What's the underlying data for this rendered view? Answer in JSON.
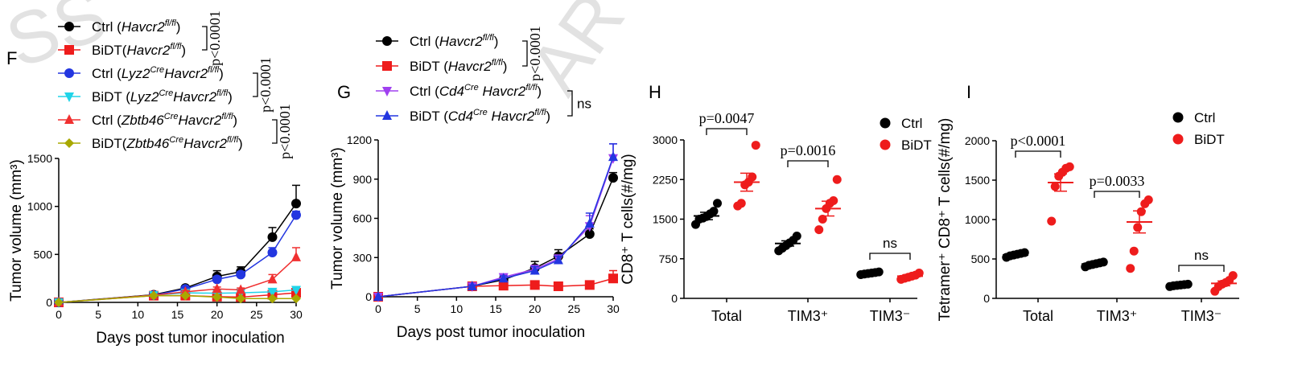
{
  "watermarks": [
    "SS",
    "AR"
  ],
  "chart_data": [
    {
      "panel": "F",
      "type": "line",
      "xlabel": "Days post tumor inoculation",
      "ylabel": "Tumor volume (mm³)",
      "xlim": [
        0,
        30
      ],
      "ylim": [
        0,
        1500
      ],
      "xticks": [
        0,
        5,
        10,
        15,
        20,
        25,
        30
      ],
      "yticks": [
        0,
        500,
        1000,
        1500
      ],
      "x": [
        0,
        12,
        16,
        20,
        23,
        27,
        30
      ],
      "series": [
        {
          "name": "Ctrl (Havcr2fl/fl)",
          "color": "#000000",
          "marker": "circle",
          "values": [
            0,
            80,
            150,
            270,
            320,
            680,
            1030
          ],
          "err": [
            0,
            10,
            20,
            60,
            50,
            100,
            190
          ]
        },
        {
          "name": "BiDT(Havcr2fl/fl)",
          "color": "#ee1c1c",
          "marker": "square",
          "values": [
            0,
            70,
            70,
            60,
            55,
            80,
            100
          ],
          "err": [
            0,
            8,
            10,
            15,
            15,
            20,
            20
          ]
        },
        {
          "name": "Ctrl (Lyz2CreHavcr2fl/fl)",
          "color": "#2336e0",
          "marker": "circle",
          "values": [
            0,
            75,
            140,
            240,
            290,
            520,
            910
          ],
          "err": [
            0,
            10,
            20,
            30,
            30,
            50,
            40
          ]
        },
        {
          "name": "BiDT (Lyz2CreHavcr2fl/fl)",
          "color": "#20d4e8",
          "marker": "tri-down",
          "values": [
            0,
            75,
            100,
            95,
            100,
            110,
            130
          ],
          "err": [
            0,
            8,
            10,
            15,
            15,
            15,
            20
          ]
        },
        {
          "name": "Ctrl (Zbtb46CreHavcr2fl/fl)",
          "color": "#f03030",
          "marker": "tri-up",
          "values": [
            0,
            75,
            110,
            140,
            130,
            240,
            470
          ],
          "err": [
            0,
            10,
            15,
            20,
            20,
            50,
            100
          ]
        },
        {
          "name": "BiDT(Zbtb46CreHavcr2fl/fl)",
          "color": "#a8a800",
          "marker": "diamond",
          "values": [
            0,
            70,
            70,
            55,
            40,
            40,
            40
          ],
          "err": [
            0,
            8,
            8,
            8,
            8,
            8,
            8
          ]
        }
      ],
      "legend": [
        {
          "pre": "Ctrl (",
          "it": "Havcr2",
          "sup": "fl/fl",
          "post": ")"
        },
        {
          "pre": "BiDT(",
          "it": "Havcr2",
          "sup": "fl/fl",
          "post": ")"
        },
        {
          "pre": "Ctrl (",
          "it": "Lyz2",
          "sup": "Cre",
          "it2": "Havcr2",
          "sup2": "fl/fl",
          "post": ")"
        },
        {
          "pre": "BiDT (",
          "it": "Lyz2",
          "sup": "Cre",
          "it2": "Havcr2",
          "sup2": "fl/fl",
          "post": ")"
        },
        {
          "pre": "Ctrl (",
          "it": "Zbtb46",
          "sup": "Cre",
          "it2": "Havcr2",
          "sup2": "fl/fl",
          "post": ")"
        },
        {
          "pre": "BiDT(",
          "it": "Zbtb46",
          "sup": "Cre",
          "it2": "Havcr2",
          "sup2": "fl/fl",
          "post": ")"
        }
      ],
      "stats": [
        "p<0.0001",
        "p<0.0001",
        "p<0.0001"
      ]
    },
    {
      "panel": "G",
      "type": "line",
      "xlabel": "Days post tumor inoculation",
      "ylabel": "Tumor volume (mm³)",
      "xlim": [
        0,
        30
      ],
      "ylim": [
        0,
        1200
      ],
      "xticks": [
        0,
        5,
        10,
        15,
        20,
        25,
        30
      ],
      "yticks": [
        0,
        300,
        600,
        900,
        1200
      ],
      "x": [
        0,
        12,
        16,
        20,
        23,
        27,
        30
      ],
      "series": [
        {
          "name": "Ctrl (Havcr2fl/fl)",
          "color": "#000000",
          "marker": "circle",
          "values": [
            0,
            80,
            130,
            220,
            310,
            480,
            910
          ],
          "err": [
            0,
            10,
            20,
            50,
            50,
            40,
            40
          ]
        },
        {
          "name": "BiDT (Havcr2fl/fl)",
          "color": "#ee1c1c",
          "marker": "square",
          "values": [
            0,
            80,
            85,
            90,
            80,
            90,
            140
          ],
          "err": [
            0,
            10,
            10,
            15,
            15,
            30,
            60
          ]
        },
        {
          "name": "Ctrl (Cd4Cre Havcr2fl/fl)",
          "color": "#a040f0",
          "marker": "tri-down",
          "values": [
            0,
            80,
            150,
            210,
            290,
            540,
            1060
          ],
          "err": [
            0,
            10,
            20,
            30,
            30,
            80,
            110
          ]
        },
        {
          "name": "BiDT (Cd4Cre Havcr2fl/fl)",
          "color": "#2336e0",
          "marker": "tri-up",
          "values": [
            0,
            80,
            140,
            200,
            280,
            560,
            1070
          ],
          "err": [
            0,
            10,
            20,
            30,
            30,
            80,
            100
          ]
        }
      ],
      "legend": [
        {
          "pre": "Ctrl (",
          "it": "Havcr2",
          "sup": "fl/fl",
          "post": ")"
        },
        {
          "pre": "BiDT (",
          "it": "Havcr2",
          "sup": "fl/fl",
          "post": ")"
        },
        {
          "pre": "Ctrl (",
          "it": "Cd4",
          "sup": "Cre",
          "it2": " Havcr2",
          "sup2": "fl/fl",
          "post": ")"
        },
        {
          "pre": "BiDT (",
          "it": "Cd4",
          "sup": "Cre",
          "it2": " Havcr2",
          "sup2": "fl/fl",
          "post": ")"
        }
      ],
      "stats": [
        "p<0.0001",
        "ns"
      ]
    },
    {
      "panel": "H",
      "type": "scatter",
      "ylabel": "CD8⁺ T cells(#/mg)",
      "ylim": [
        0,
        3000
      ],
      "yticks": [
        0,
        750,
        1500,
        2250,
        3000
      ],
      "categories": [
        "Total",
        "TIM3⁺",
        "TIM3⁻"
      ],
      "legend": [
        "Ctrl",
        "BiDT"
      ],
      "groups": {
        "Ctrl": [
          [
            1400,
            1500,
            1520,
            1550,
            1600,
            1650,
            1800
          ],
          [
            900,
            950,
            1000,
            1050,
            1100,
            1180
          ],
          [
            450,
            460,
            470,
            480,
            490,
            500
          ]
        ],
        "BiDT": [
          [
            1750,
            1800,
            2150,
            2200,
            2300,
            2900
          ],
          [
            1300,
            1500,
            1700,
            1800,
            1850,
            2250
          ],
          [
            360,
            380,
            400,
            420,
            440,
            480
          ]
        ]
      },
      "means": {
        "Ctrl": [
          1560,
          1040,
          475
        ],
        "BiDT": [
          2200,
          1700,
          420
        ]
      },
      "sem": {
        "Ctrl": [
          70,
          50,
          10
        ],
        "BiDT": [
          170,
          140,
          20
        ]
      },
      "stats": [
        "p=0.0047",
        "p=0.0016",
        "ns"
      ]
    },
    {
      "panel": "I",
      "type": "scatter",
      "ylabel": "Tetramer⁺ CD8⁺ T cells(#/mg)",
      "ylim": [
        0,
        2000
      ],
      "yticks": [
        0,
        500,
        1000,
        1500,
        2000
      ],
      "categories": [
        "Total",
        "TIM3⁺",
        "TIM3⁻"
      ],
      "legend": [
        "Ctrl",
        "BiDT"
      ],
      "groups": {
        "Ctrl": [
          [
            520,
            540,
            550,
            560,
            570,
            580
          ],
          [
            400,
            420,
            430,
            440,
            450,
            460
          ],
          [
            150,
            160,
            165,
            170,
            175,
            180
          ]
        ],
        "BiDT": [
          [
            980,
            1420,
            1550,
            1600,
            1650,
            1670
          ],
          [
            380,
            600,
            900,
            1100,
            1200,
            1250
          ],
          [
            90,
            150,
            180,
            200,
            230,
            290
          ]
        ]
      },
      "means": {
        "Ctrl": [
          550,
          435,
          165
        ],
        "BiDT": [
          1470,
          970,
          190
        ]
      },
      "sem": {
        "Ctrl": [
          15,
          10,
          5
        ],
        "BiDT": [
          110,
          140,
          30
        ]
      },
      "stats": [
        "p<0.0001",
        "p=0.0033",
        "ns"
      ]
    }
  ]
}
